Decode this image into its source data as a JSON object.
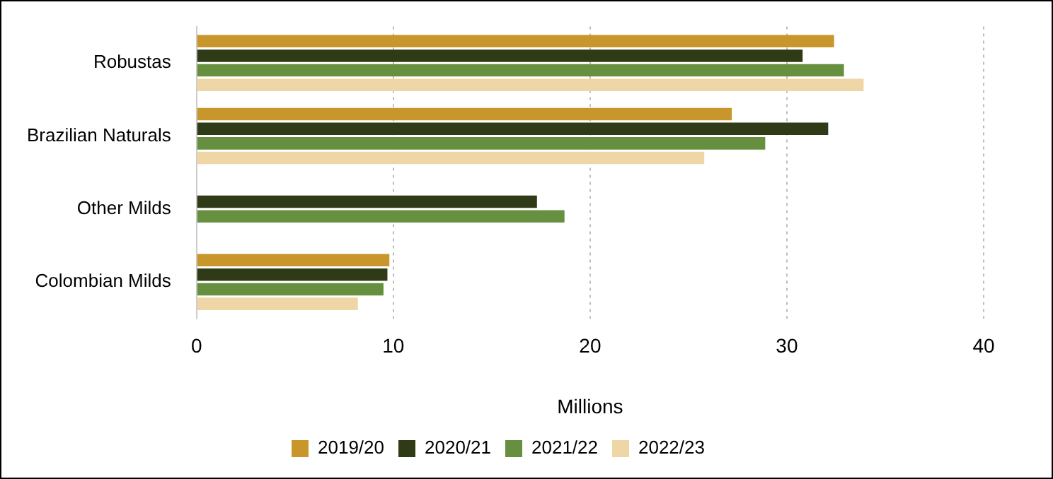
{
  "chart_data": {
    "type": "bar",
    "orientation": "horizontal",
    "categories": [
      "Robustas",
      "Brazilian Naturals",
      "Other Milds",
      "Colombian Milds"
    ],
    "xlabel": "Millions",
    "xlim": [
      0,
      40
    ],
    "xticks": [
      0,
      10,
      20,
      30,
      40
    ],
    "grid": "x",
    "legend": "bottom",
    "series": [
      {
        "name": "2019/20",
        "color": "#c8962a",
        "values": [
          32.4,
          27.2,
          null,
          9.8
        ]
      },
      {
        "name": "2020/21",
        "color": "#2f3a16",
        "values": [
          30.8,
          32.1,
          17.3,
          9.7
        ]
      },
      {
        "name": "2021/22",
        "color": "#66903f",
        "values": [
          32.9,
          28.9,
          18.7,
          9.5
        ]
      },
      {
        "name": "2022/23",
        "color": "#efd6a6",
        "values": [
          33.9,
          25.8,
          null,
          8.2
        ]
      }
    ]
  }
}
